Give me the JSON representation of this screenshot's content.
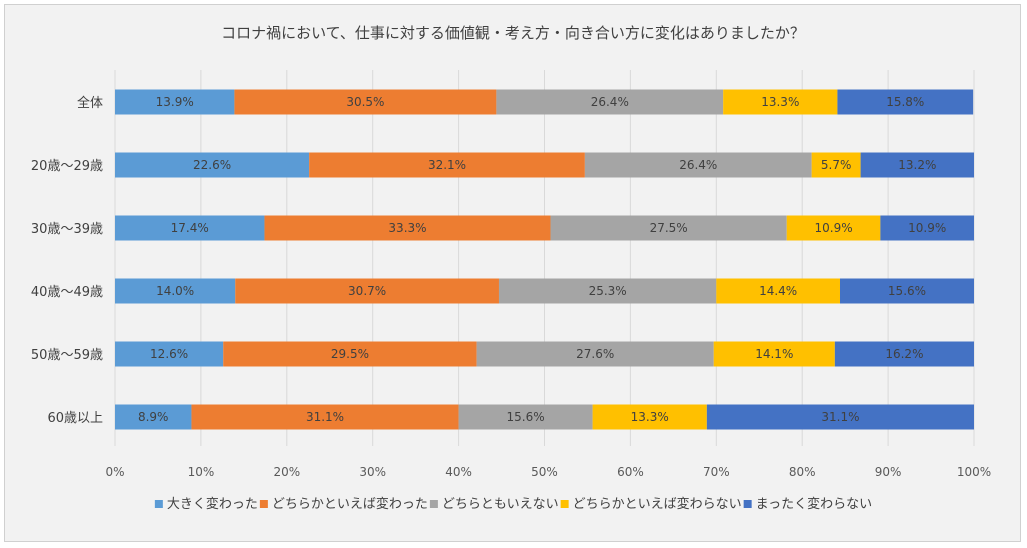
{
  "chart_data": {
    "type": "stacked-bar-100",
    "title": "コロナ禍において、仕事に対する価値観・考え方・向き合い方に変化はありましたか？",
    "categories": [
      "全体",
      "20歳～29歳",
      "30歳～39歳",
      "40歳～49歳",
      "50歳～59歳",
      "60歳以上"
    ],
    "series": [
      {
        "name": "大きく変わった",
        "color": "#5b9bd5",
        "values": [
          13.9,
          22.6,
          17.4,
          14.0,
          12.6,
          8.9
        ],
        "labels": [
          "13.9%",
          "22.6%",
          "17.4%",
          "14.0%",
          "12.6%",
          "8.9%"
        ]
      },
      {
        "name": "どちらかといえば変わった",
        "color": "#ed7d31",
        "values": [
          30.5,
          32.1,
          33.3,
          30.7,
          29.5,
          31.1
        ],
        "labels": [
          "30.5%",
          "32.1%",
          "33.3%",
          "30.7%",
          "29.5%",
          "31.1%"
        ]
      },
      {
        "name": "どちらともいえない",
        "color": "#a5a5a5",
        "values": [
          26.4,
          26.4,
          27.5,
          25.3,
          27.6,
          15.6
        ],
        "labels": [
          "26.4%",
          "26.4%",
          "27.5%",
          "25.3%",
          "27.6%",
          "15.6%"
        ]
      },
      {
        "name": "どちらかといえば変わらない",
        "color": "#ffc000",
        "values": [
          13.3,
          5.7,
          10.9,
          14.4,
          14.1,
          13.3
        ],
        "labels": [
          "13.3%",
          "5.7%",
          "10.9%",
          "14.4%",
          "14.1%",
          "13.3%"
        ]
      },
      {
        "name": "まったく変わらない",
        "color": "#4472c4",
        "values": [
          15.8,
          13.2,
          10.9,
          15.6,
          16.2,
          31.1
        ],
        "labels": [
          "15.8%",
          "13.2%",
          "10.9%",
          "15.6%",
          "16.2%",
          "31.1%"
        ]
      }
    ],
    "xlim": [
      0,
      100
    ],
    "xticks": [
      "0%",
      "10%",
      "20%",
      "30%",
      "40%",
      "50%",
      "60%",
      "70%",
      "80%",
      "90%",
      "100%"
    ],
    "grid": true,
    "legend_position": "bottom"
  }
}
